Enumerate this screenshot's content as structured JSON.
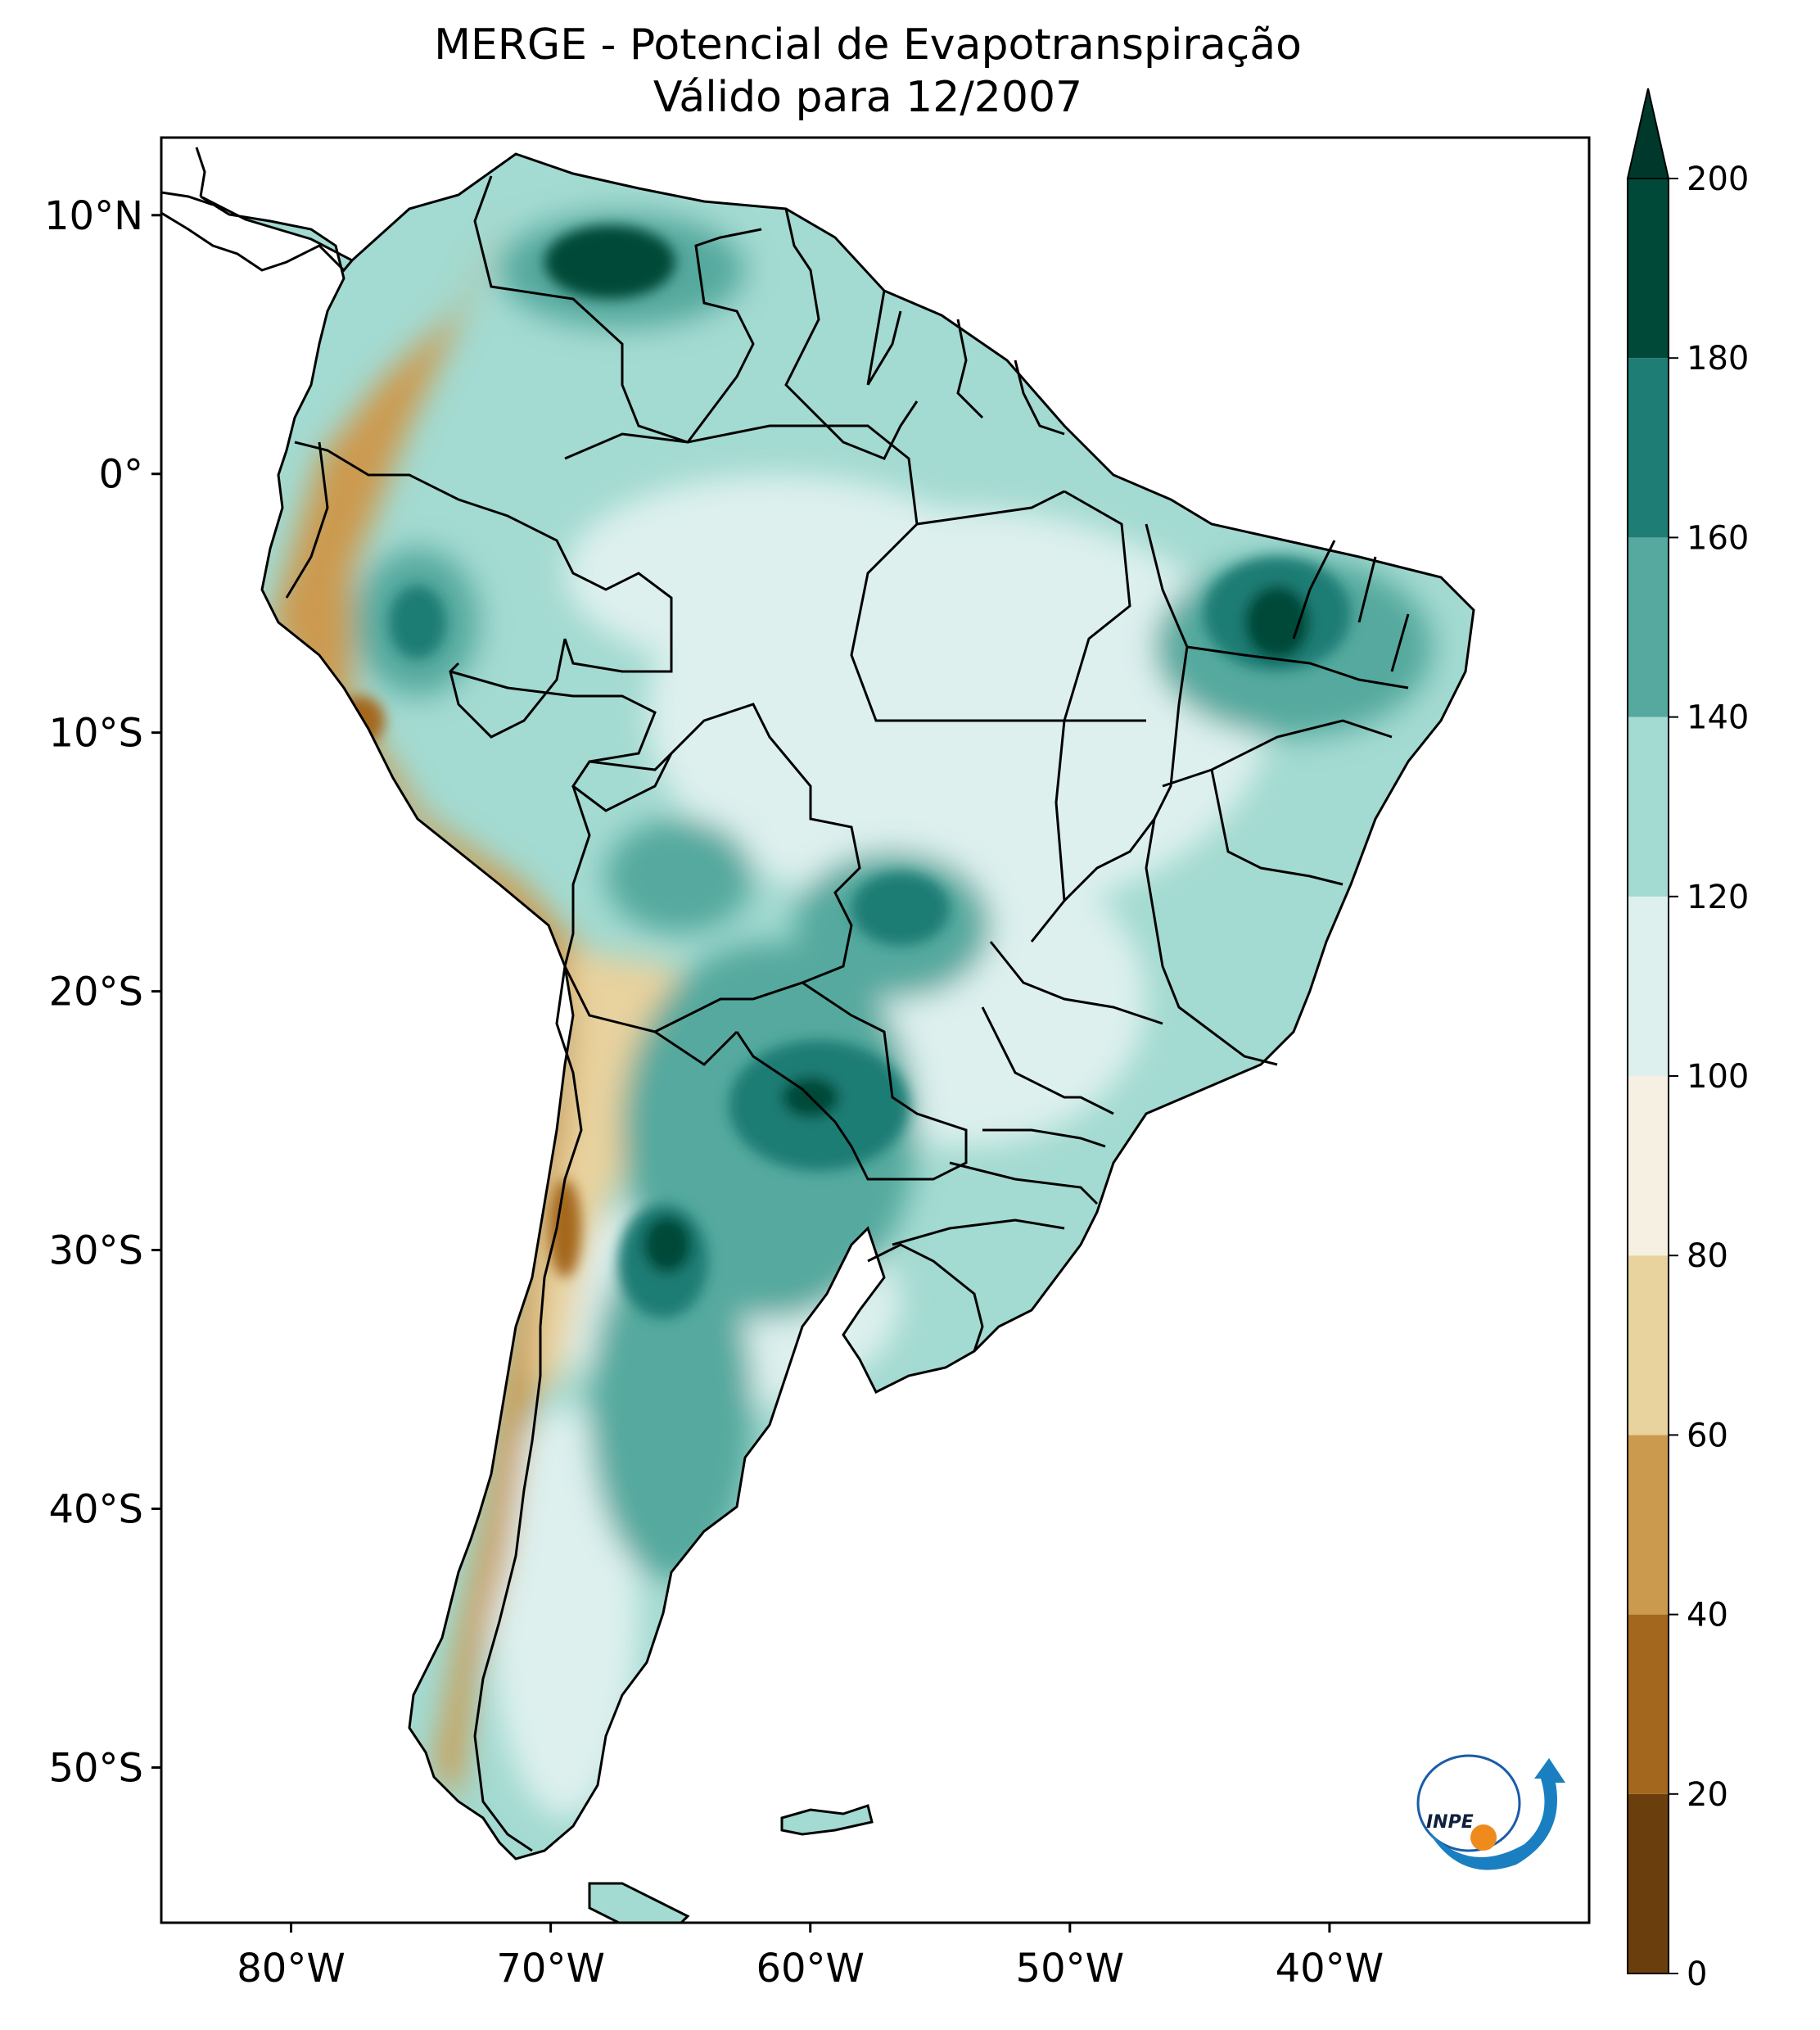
{
  "chart_data": {
    "type": "heatmap",
    "title": "MERGE - Potencial de Evapotranspiração",
    "subtitle": "Válido para 12/2007",
    "xlabel": "",
    "ylabel": "",
    "xlim": [
      -85,
      -30
    ],
    "ylim": [
      -56,
      13
    ],
    "x_ticks": [
      {
        "value": -80,
        "label": "80°W"
      },
      {
        "value": -70,
        "label": "70°W"
      },
      {
        "value": -60,
        "label": "60°W"
      },
      {
        "value": -50,
        "label": "50°W"
      },
      {
        "value": -40,
        "label": "40°W"
      }
    ],
    "y_ticks": [
      {
        "value": 10,
        "label": "10°N"
      },
      {
        "value": 0,
        "label": "0°"
      },
      {
        "value": -10,
        "label": "10°S"
      },
      {
        "value": -20,
        "label": "20°S"
      },
      {
        "value": -30,
        "label": "30°S"
      },
      {
        "value": -40,
        "label": "40°S"
      },
      {
        "value": -50,
        "label": "50°S"
      }
    ],
    "colorbar": {
      "min": 0,
      "max": 200,
      "extend": "max",
      "levels": [
        0,
        20,
        40,
        60,
        80,
        100,
        120,
        140,
        160,
        180,
        200
      ],
      "bins": [
        {
          "from": 0,
          "to": 20,
          "color": "#6b3f0d"
        },
        {
          "from": 20,
          "to": 40,
          "color": "#a4671e"
        },
        {
          "from": 40,
          "to": 60,
          "color": "#cc9a4f"
        },
        {
          "from": 60,
          "to": 80,
          "color": "#e8d29e"
        },
        {
          "from": 80,
          "to": 100,
          "color": "#f6f0e2"
        },
        {
          "from": 100,
          "to": 120,
          "color": "#ddf0ee"
        },
        {
          "from": 120,
          "to": 140,
          "color": "#a3dad1"
        },
        {
          "from": 140,
          "to": 160,
          "color": "#55a99e"
        },
        {
          "from": 160,
          "to": 180,
          "color": "#1e7d74"
        },
        {
          "from": 180,
          "to": 200,
          "color": "#004838"
        }
      ],
      "over_color": "#00382c"
    },
    "regions": [
      {
        "name": "venezuela-llanos-max",
        "lon": -67.5,
        "lat": 8.2,
        "value": 190
      },
      {
        "name": "northeast-brazil-max",
        "lon": -41.5,
        "lat": -6.0,
        "value": 185
      },
      {
        "name": "chaco-core",
        "lon": -61.0,
        "lat": -24.0,
        "value": 170
      },
      {
        "name": "pampas-west-max",
        "lon": -66.0,
        "lat": -30.0,
        "value": 185
      },
      {
        "name": "peru-amazon-high",
        "lon": -75.5,
        "lat": -5.5,
        "value": 165
      },
      {
        "name": "mato-grosso-high",
        "lon": -56.5,
        "lat": -16.0,
        "value": 165
      },
      {
        "name": "amazon-basin",
        "lon": -62.0,
        "lat": -4.0,
        "value": 120
      },
      {
        "name": "central-brazil",
        "lon": -52.0,
        "lat": -12.0,
        "value": 110
      },
      {
        "name": "andes-peru-low",
        "lon": -75.0,
        "lat": -13.0,
        "value": 55
      },
      {
        "name": "atacama-low",
        "lon": -69.5,
        "lat": -24.0,
        "value": 70
      },
      {
        "name": "patagonia-east",
        "lon": -66.0,
        "lat": -42.0,
        "value": 120
      }
    ]
  },
  "logo": {
    "name": "INPE"
  }
}
